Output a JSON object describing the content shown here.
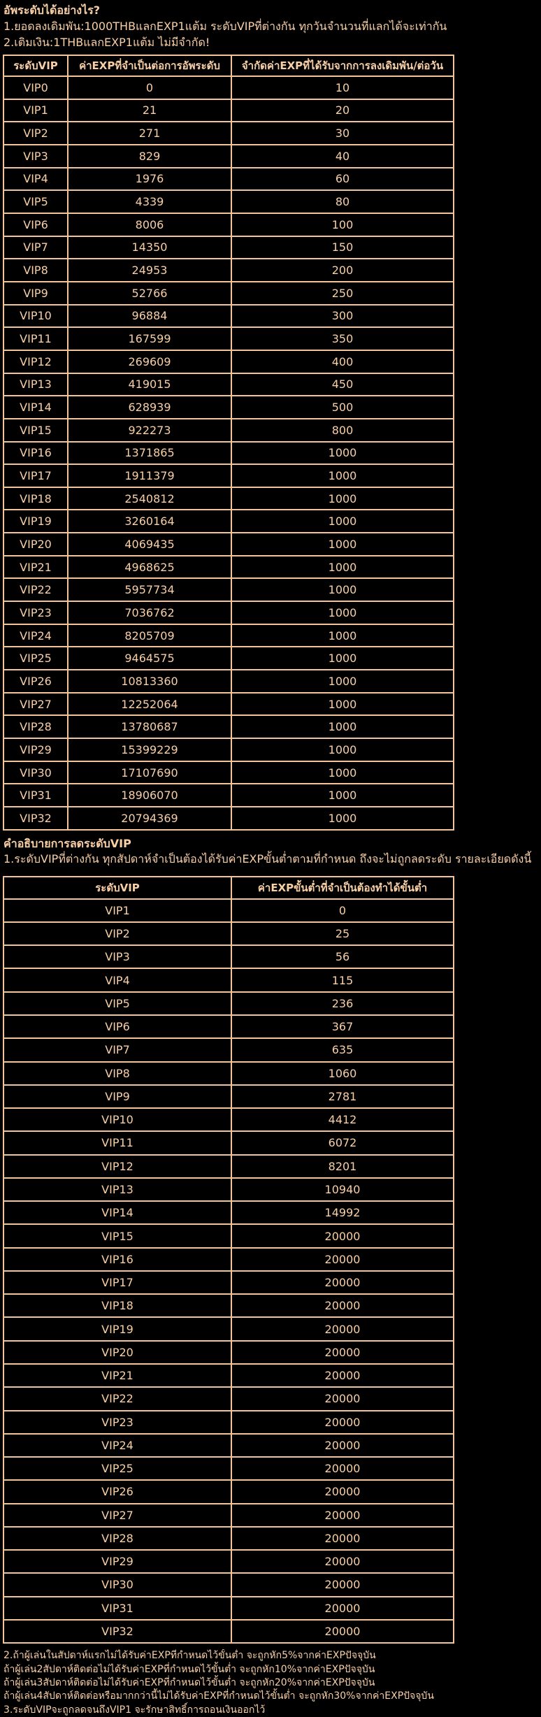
{
  "page": {
    "background": "#000000",
    "text_color": "#f9cfa6",
    "border_color": "#f3c49a"
  },
  "intro": {
    "heading": "อัพระดับได้อย่างไร?",
    "line1": "1.ยอดลงเดิมพัน:1000THBแลกEXP1แต้ม ระดับVIPที่ต่างกัน ทุกวันจำนวนที่แลกได้จะเท่ากัน",
    "line2": "2.เติมเงิน:1THBแลกEXP1แต้ม ไม่มีจำกัด!"
  },
  "upgrade_table": {
    "headers": [
      "ระดับVIP",
      "ค่าEXPที่จำเป็นต่อการอัพระดับ",
      "จำกัดค่าEXPที่ได้รับจากการลงเดิมพัน/ต่อวัน"
    ],
    "rows": [
      [
        "VIP0",
        "0",
        "10"
      ],
      [
        "VIP1",
        "21",
        "20"
      ],
      [
        "VIP2",
        "271",
        "30"
      ],
      [
        "VIP3",
        "829",
        "40"
      ],
      [
        "VIP4",
        "1976",
        "60"
      ],
      [
        "VIP5",
        "4339",
        "80"
      ],
      [
        "VIP6",
        "8006",
        "100"
      ],
      [
        "VIP7",
        "14350",
        "150"
      ],
      [
        "VIP8",
        "24953",
        "200"
      ],
      [
        "VIP9",
        "52766",
        "250"
      ],
      [
        "VIP10",
        "96884",
        "300"
      ],
      [
        "VIP11",
        "167599",
        "350"
      ],
      [
        "VIP12",
        "269609",
        "400"
      ],
      [
        "VIP13",
        "419015",
        "450"
      ],
      [
        "VIP14",
        "628939",
        "500"
      ],
      [
        "VIP15",
        "922273",
        "800"
      ],
      [
        "VIP16",
        "1371865",
        "1000"
      ],
      [
        "VIP17",
        "1911379",
        "1000"
      ],
      [
        "VIP18",
        "2540812",
        "1000"
      ],
      [
        "VIP19",
        "3260164",
        "1000"
      ],
      [
        "VIP20",
        "4069435",
        "1000"
      ],
      [
        "VIP21",
        "4968625",
        "1000"
      ],
      [
        "VIP22",
        "5957734",
        "1000"
      ],
      [
        "VIP23",
        "7036762",
        "1000"
      ],
      [
        "VIP24",
        "8205709",
        "1000"
      ],
      [
        "VIP25",
        "9464575",
        "1000"
      ],
      [
        "VIP26",
        "10813360",
        "1000"
      ],
      [
        "VIP27",
        "12252064",
        "1000"
      ],
      [
        "VIP28",
        "13780687",
        "1000"
      ],
      [
        "VIP29",
        "15399229",
        "1000"
      ],
      [
        "VIP30",
        "17107690",
        "1000"
      ],
      [
        "VIP31",
        "18906070",
        "1000"
      ],
      [
        "VIP32",
        "20794369",
        "1000"
      ]
    ]
  },
  "downgrade_section": {
    "heading": "คำอธิบายการลดระดับVIP",
    "line1": "1.ระดับVIPที่ต่างกัน ทุกสัปดาห์จำเป็นต้องได้รับค่าEXPขั้นต่ำตามที่กำหนด ถึงจะไม่ถูกลดระดับ รายละเอียดดังนี้",
    "table": {
      "headers": [
        "ระดับVIP",
        "ค่าEXPขั้นต่ำที่จำเป็นต้องทำได้ขั้นต่ำ"
      ],
      "rows": [
        [
          "VIP1",
          "0"
        ],
        [
          "VIP2",
          "25"
        ],
        [
          "VIP3",
          "56"
        ],
        [
          "VIP4",
          "115"
        ],
        [
          "VIP5",
          "236"
        ],
        [
          "VIP6",
          "367"
        ],
        [
          "VIP7",
          "635"
        ],
        [
          "VIP8",
          "1060"
        ],
        [
          "VIP9",
          "2781"
        ],
        [
          "VIP10",
          "4412"
        ],
        [
          "VIP11",
          "6072"
        ],
        [
          "VIP12",
          "8201"
        ],
        [
          "VIP13",
          "10940"
        ],
        [
          "VIP14",
          "14992"
        ],
        [
          "VIP15",
          "20000"
        ],
        [
          "VIP16",
          "20000"
        ],
        [
          "VIP17",
          "20000"
        ],
        [
          "VIP18",
          "20000"
        ],
        [
          "VIP19",
          "20000"
        ],
        [
          "VIP20",
          "20000"
        ],
        [
          "VIP21",
          "20000"
        ],
        [
          "VIP22",
          "20000"
        ],
        [
          "VIP23",
          "20000"
        ],
        [
          "VIP24",
          "20000"
        ],
        [
          "VIP25",
          "20000"
        ],
        [
          "VIP26",
          "20000"
        ],
        [
          "VIP27",
          "20000"
        ],
        [
          "VIP28",
          "20000"
        ],
        [
          "VIP29",
          "20000"
        ],
        [
          "VIP30",
          "20000"
        ],
        [
          "VIP31",
          "20000"
        ],
        [
          "VIP32",
          "20000"
        ]
      ]
    },
    "notes": [
      "2.ถ้าผู้เล่นในสัปดาห์แรกไม่ได้รับค่าEXPที่กำหนดไว้ขั้นต่ำ จะถูกหัก5%จากค่าEXPปัจจุบัน",
      "ถ้าผู้เล่น2สัปดาห์ติดต่อไม่ได้รับค่าEXPที่กำหนดไว้ขั้นต่ำ จะถูกหัก10%จากค่าEXPปัจจุบัน",
      "ถ้าผู้เล่น3สัปดาห์ติดต่อไม่ได้รับค่าEXPที่กำหนดไว้ขั้นต่ำ จะถูกหัก20%จากค่าEXPปัจจุบัน",
      "ถ้าผู้เล่น4สัปดาห์ติดต่อหรือมากกว่านี้ไม่ได้รับค่าEXPที่กำหนดไว้ขั้นต่ำ จะถูกหัก30%จากค่าEXPปัจจุบัน",
      "3.ระดับVIPจะถูกลดจนถึงVIP1 จะรักษาสิทธิ์การถอนเงินออกไว้"
    ]
  }
}
